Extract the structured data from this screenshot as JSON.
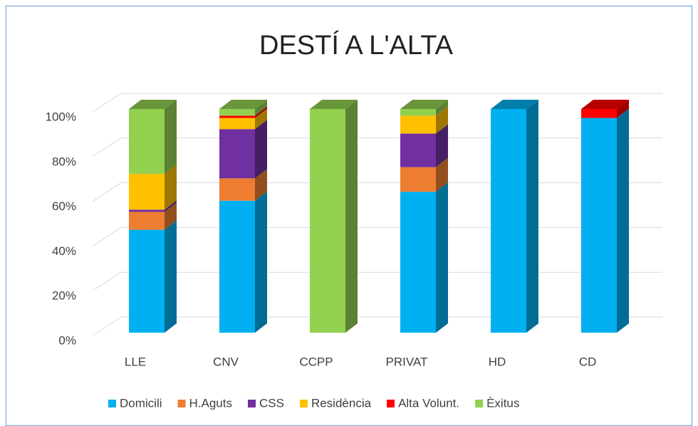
{
  "chart_data": {
    "type": "bar",
    "stacked": true,
    "title": "DESTÍ A L'ALTA",
    "categories": [
      "LLE",
      "CNV",
      "CCPP",
      "PRIVAT",
      "HD",
      "CD"
    ],
    "series": [
      {
        "name": "Domicili",
        "color": "#00b0f0",
        "values": [
          46,
          59,
          0,
          63,
          100,
          96
        ]
      },
      {
        "name": "H.Aguts",
        "color": "#ed7d31",
        "values": [
          8,
          10,
          0,
          11,
          0,
          0
        ]
      },
      {
        "name": "CSS",
        "color": "#7030a0",
        "values": [
          1,
          22,
          0,
          15,
          0,
          0
        ]
      },
      {
        "name": "Residència",
        "color": "#ffc000",
        "values": [
          16,
          5,
          0,
          8,
          0,
          0
        ]
      },
      {
        "name": "Alta Volunt.",
        "color": "#ff0000",
        "values": [
          0,
          1,
          0,
          0,
          0,
          4
        ]
      },
      {
        "name": "Èxitus",
        "color": "#92d050",
        "values": [
          29,
          3,
          100,
          3,
          0,
          0
        ]
      }
    ],
    "ylim": [
      0,
      100
    ],
    "yticks": [
      {
        "value": 0,
        "label": "0%"
      },
      {
        "value": 20,
        "label": "20%"
      },
      {
        "value": 40,
        "label": "40%"
      },
      {
        "value": 60,
        "label": "60%"
      },
      {
        "value": 80,
        "label": "80%"
      },
      {
        "value": 100,
        "label": "100%"
      }
    ],
    "grid": true,
    "legend": "bottom"
  }
}
